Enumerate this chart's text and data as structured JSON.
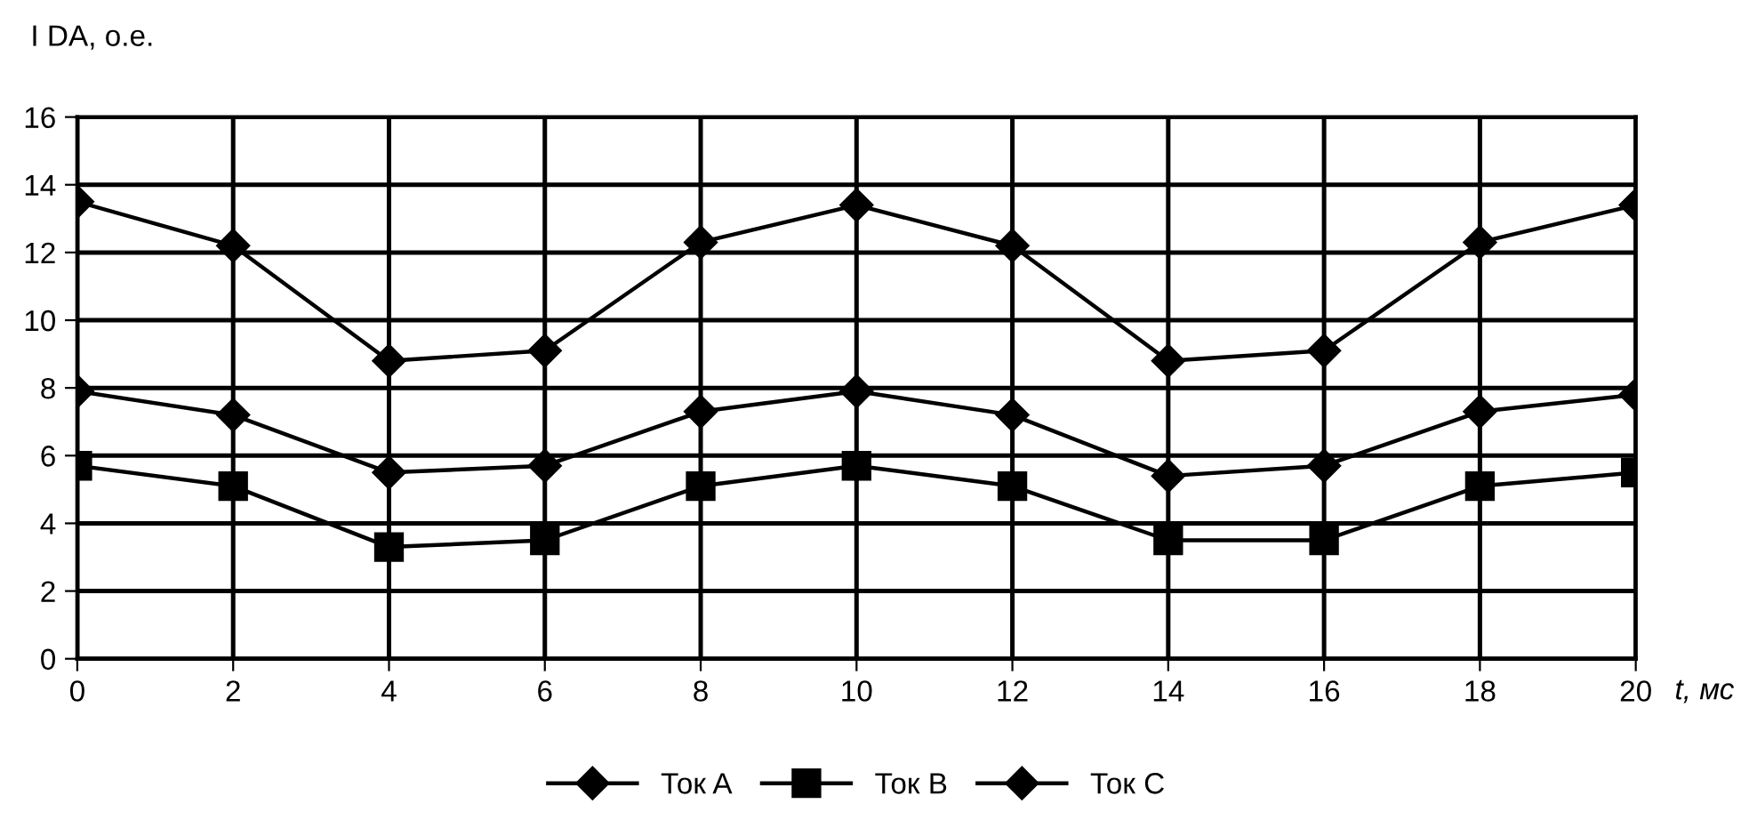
{
  "chart_data": {
    "type": "line",
    "ylabel": "I DA, о.е.",
    "xlabel": "t, мс",
    "x": [
      0,
      2,
      4,
      6,
      8,
      10,
      12,
      14,
      16,
      18,
      20
    ],
    "xlim": [
      0,
      20
    ],
    "xticks": [
      0,
      2,
      4,
      6,
      8,
      10,
      12,
      14,
      16,
      18,
      20
    ],
    "ylim": [
      0,
      16
    ],
    "yticks": [
      0,
      2,
      4,
      6,
      8,
      10,
      12,
      14,
      16
    ],
    "grid": true,
    "legend": "bottom",
    "line_style": "solid",
    "series": [
      {
        "name": "Ток A",
        "color": "#000000",
        "marker": "diamond",
        "values": [
          13.5,
          12.2,
          8.8,
          9.1,
          12.3,
          13.4,
          12.2,
          8.8,
          9.1,
          12.3,
          13.4
        ]
      },
      {
        "name": "Ток B",
        "color": "#000000",
        "marker": "square",
        "values": [
          5.7,
          5.1,
          3.3,
          3.5,
          5.1,
          5.7,
          5.1,
          3.5,
          3.5,
          5.1,
          5.5
        ]
      },
      {
        "name": "Ток C",
        "color": "#000000",
        "marker": "diamond",
        "values": [
          7.9,
          7.2,
          5.5,
          5.7,
          7.3,
          7.9,
          7.2,
          5.4,
          5.7,
          7.3,
          7.8
        ]
      }
    ]
  }
}
